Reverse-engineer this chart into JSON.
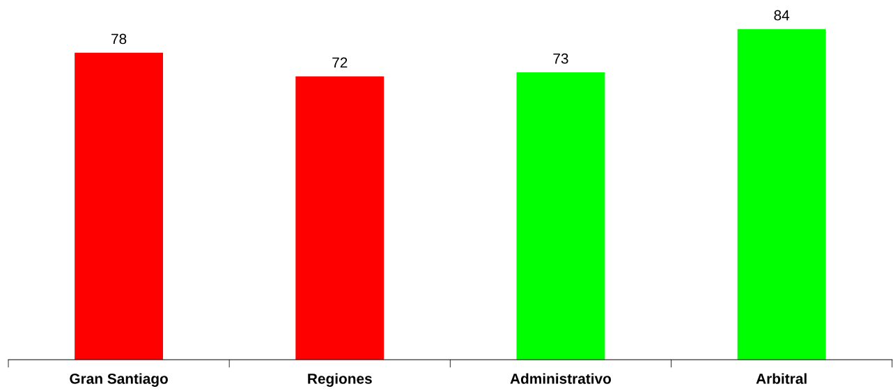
{
  "chart_data": {
    "type": "bar",
    "categories": [
      "Gran Santiago",
      "Regiones",
      "Administrativo",
      "Arbitral"
    ],
    "values": [
      78,
      72,
      73,
      84
    ],
    "colors": [
      "#ff0000",
      "#ff0000",
      "#00ff00",
      "#00ff00"
    ],
    "data_labels": true,
    "grid": false,
    "legend": false,
    "tick_labels": "x"
  }
}
